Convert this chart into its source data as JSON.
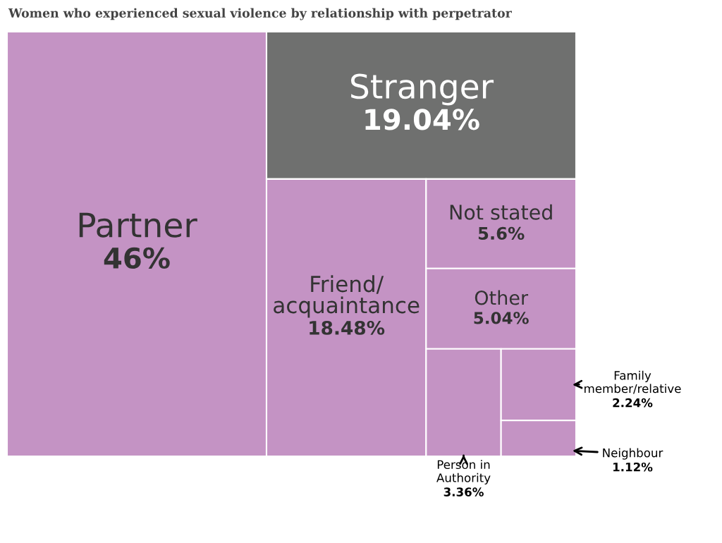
{
  "chart_data": {
    "type": "other",
    "title": "Women who experienced sexual violence by relationship with perpetrator",
    "categories": [
      "Partner",
      "Stranger",
      "Friend/\nacquaintance",
      "Not stated",
      "Other",
      "Person in\nAuthority",
      "Family\nmember/relative",
      "Neighbour"
    ],
    "values": [
      46,
      19.04,
      18.48,
      5.6,
      5.04,
      3.36,
      2.24,
      1.12
    ],
    "value_labels": [
      "46%",
      "19.04%",
      "18.48%",
      "5.6%",
      "5.04%",
      "3.36%",
      "2.24%",
      "1.12%"
    ],
    "colors": [
      "#c493c4",
      "#6f706f",
      "#c493c4",
      "#c493c4",
      "#c493c4",
      "#c493c4",
      "#c493c4",
      "#c493c4"
    ]
  }
}
